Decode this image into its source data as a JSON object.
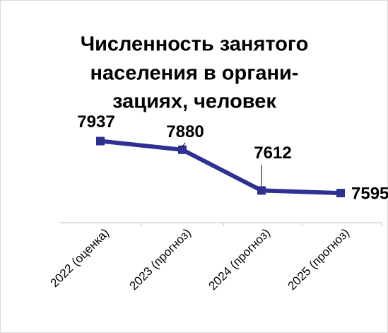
{
  "chart_data": {
    "type": "line",
    "title": [
      "Численность занятого",
      "населения в органи-",
      "зациях, человек"
    ],
    "categories": [
      "2022 (оценка)",
      "2023 (прогноз)",
      "2024 (прогноз)",
      "2025 (прогноз)"
    ],
    "series": [
      {
        "name": "Численность занятого населения",
        "color": "#2e3192",
        "values": [
          7937,
          7880,
          7612,
          7595
        ]
      }
    ],
    "ylim": [
      7400,
      8000
    ]
  }
}
